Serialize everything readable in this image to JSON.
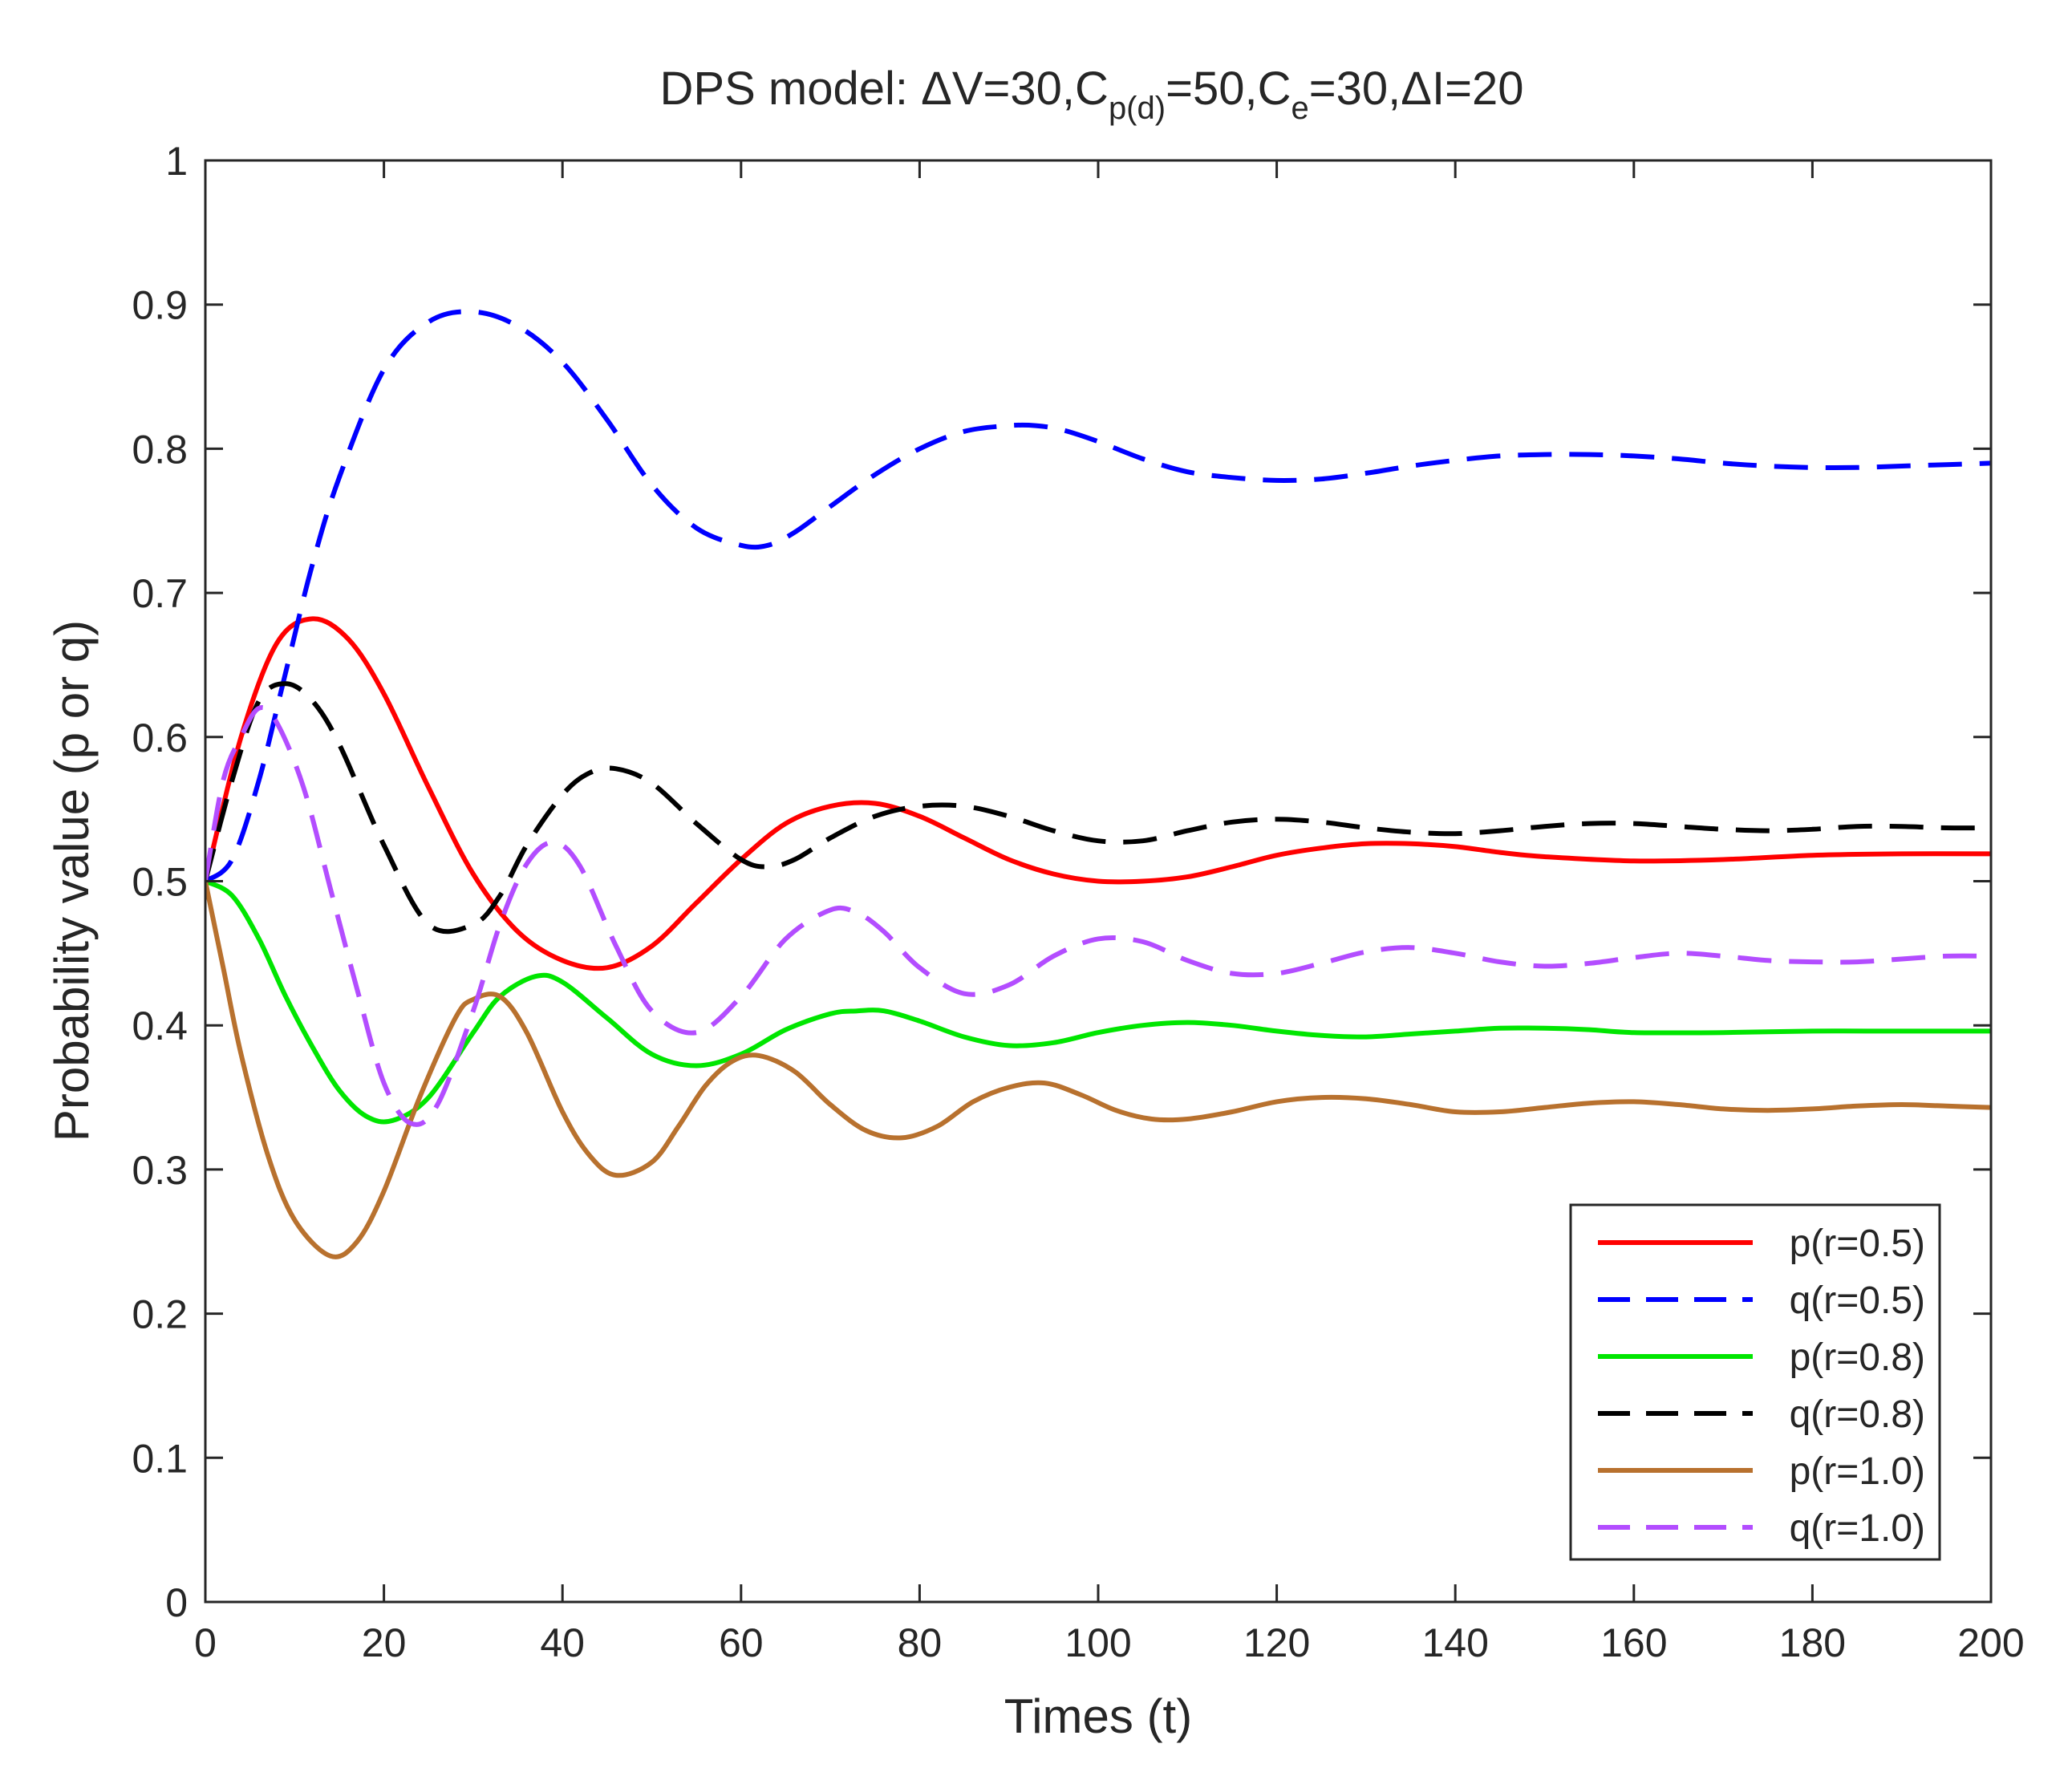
{
  "chart_data": {
    "type": "line",
    "title": {
      "prefix": "DPS model: ",
      "delta": "Δ",
      "v_label": "V=30,C",
      "sub1": "p(d)",
      "mid1": "=50,C",
      "sub2": "e",
      "mid2": "=30,",
      "i_label": "I=20"
    },
    "xlabel": "Times (t)",
    "ylabel": "Probability value (p or q)",
    "xlim": [
      0,
      200
    ],
    "ylim": [
      0,
      1
    ],
    "xticks": [
      "0",
      "20",
      "40",
      "60",
      "80",
      "100",
      "120",
      "140",
      "160",
      "180",
      "200"
    ],
    "yticks": [
      "0",
      "0.1",
      "0.2",
      "0.3",
      "0.4",
      "0.5",
      "0.6",
      "0.7",
      "0.8",
      "0.9",
      "1"
    ],
    "grid": false,
    "legend_position": "bottom-right",
    "series": [
      {
        "name": "p(r=0.5)",
        "color": "#ff0000",
        "dash": "solid",
        "x": [
          0,
          4,
          8,
          12,
          16,
          20,
          25,
          30,
          35,
          40,
          45,
          50,
          55,
          60,
          65,
          70,
          75,
          80,
          85,
          90,
          95,
          100,
          105,
          110,
          115,
          120,
          125,
          130,
          135,
          140,
          145,
          150,
          160,
          170,
          180,
          190,
          200
        ],
        "y": [
          0.5,
          0.6,
          0.665,
          0.682,
          0.668,
          0.63,
          0.565,
          0.505,
          0.465,
          0.445,
          0.44,
          0.455,
          0.485,
          0.515,
          0.54,
          0.552,
          0.554,
          0.545,
          0.53,
          0.515,
          0.505,
          0.5,
          0.5,
          0.503,
          0.51,
          0.518,
          0.523,
          0.526,
          0.526,
          0.524,
          0.52,
          0.517,
          0.514,
          0.515,
          0.518,
          0.519,
          0.519
        ]
      },
      {
        "name": "q(r=0.5)",
        "color": "#0000ff",
        "dash": "dashed",
        "x": [
          0,
          3,
          6,
          9,
          12,
          15,
          20,
          25,
          30,
          35,
          40,
          45,
          50,
          55,
          60,
          63,
          66,
          70,
          75,
          80,
          85,
          90,
          93,
          96,
          100,
          105,
          110,
          115,
          120,
          125,
          130,
          135,
          140,
          145,
          150,
          155,
          160,
          165,
          170,
          175,
          180,
          185,
          190,
          195,
          200
        ],
        "y": [
          0.5,
          0.515,
          0.57,
          0.645,
          0.72,
          0.78,
          0.855,
          0.888,
          0.895,
          0.885,
          0.86,
          0.82,
          0.775,
          0.745,
          0.733,
          0.733,
          0.742,
          0.76,
          0.782,
          0.8,
          0.812,
          0.816,
          0.816,
          0.813,
          0.805,
          0.793,
          0.784,
          0.78,
          0.778,
          0.779,
          0.783,
          0.788,
          0.792,
          0.795,
          0.796,
          0.796,
          0.795,
          0.793,
          0.79,
          0.788,
          0.787,
          0.787,
          0.788,
          0.789,
          0.79
        ]
      },
      {
        "name": "p(r=0.8)",
        "color": "#00e600",
        "dash": "solid",
        "x": [
          0,
          3,
          6,
          9,
          12,
          15,
          18,
          21,
          25,
          30,
          33,
          37,
          40,
          45,
          50,
          55,
          60,
          65,
          70,
          73,
          76,
          80,
          85,
          90,
          95,
          100,
          105,
          110,
          115,
          120,
          125,
          130,
          135,
          140,
          145,
          150,
          155,
          160,
          170,
          180,
          190,
          200
        ],
        "y": [
          0.5,
          0.49,
          0.46,
          0.42,
          0.385,
          0.355,
          0.337,
          0.334,
          0.35,
          0.395,
          0.42,
          0.434,
          0.43,
          0.405,
          0.38,
          0.372,
          0.38,
          0.397,
          0.408,
          0.41,
          0.41,
          0.403,
          0.392,
          0.386,
          0.388,
          0.395,
          0.4,
          0.402,
          0.4,
          0.396,
          0.393,
          0.392,
          0.394,
          0.396,
          0.398,
          0.398,
          0.397,
          0.395,
          0.395,
          0.396,
          0.396,
          0.396
        ]
      },
      {
        "name": "q(r=0.8)",
        "color": "#000000",
        "dash": "dashed",
        "x": [
          0,
          3,
          6,
          9,
          12,
          15,
          20,
          25,
          30,
          33,
          36,
          40,
          43,
          46,
          50,
          55,
          60,
          63,
          66,
          70,
          75,
          80,
          85,
          90,
          95,
          100,
          105,
          110,
          115,
          120,
          125,
          130,
          135,
          140,
          145,
          150,
          155,
          160,
          165,
          170,
          175,
          180,
          185,
          190,
          195,
          200
        ],
        "y": [
          0.5,
          0.57,
          0.625,
          0.637,
          0.625,
          0.595,
          0.525,
          0.47,
          0.47,
          0.49,
          0.525,
          0.56,
          0.575,
          0.578,
          0.568,
          0.54,
          0.515,
          0.51,
          0.515,
          0.53,
          0.545,
          0.552,
          0.552,
          0.545,
          0.535,
          0.528,
          0.528,
          0.535,
          0.541,
          0.543,
          0.541,
          0.537,
          0.534,
          0.533,
          0.535,
          0.538,
          0.54,
          0.54,
          0.538,
          0.536,
          0.535,
          0.536,
          0.538,
          0.538,
          0.537,
          0.537
        ]
      },
      {
        "name": "p(r=1.0)",
        "color": "#b8712e",
        "dash": "solid",
        "x": [
          0,
          2,
          4,
          7,
          10,
          14,
          17,
          20,
          24,
          28,
          30,
          33,
          36,
          40,
          43,
          46,
          50,
          53,
          56,
          59,
          62,
          66,
          70,
          74,
          78,
          82,
          86,
          90,
          94,
          98,
          102,
          106,
          110,
          115,
          120,
          125,
          130,
          135,
          140,
          145,
          150,
          155,
          160,
          165,
          170,
          175,
          180,
          185,
          190,
          195,
          200
        ],
        "y": [
          0.5,
          0.44,
          0.38,
          0.31,
          0.265,
          0.24,
          0.25,
          0.285,
          0.35,
          0.405,
          0.418,
          0.42,
          0.395,
          0.34,
          0.31,
          0.296,
          0.305,
          0.33,
          0.358,
          0.375,
          0.379,
          0.368,
          0.345,
          0.327,
          0.322,
          0.33,
          0.347,
          0.357,
          0.36,
          0.352,
          0.341,
          0.335,
          0.335,
          0.34,
          0.347,
          0.35,
          0.349,
          0.345,
          0.34,
          0.34,
          0.343,
          0.346,
          0.347,
          0.345,
          0.342,
          0.341,
          0.342,
          0.344,
          0.345,
          0.344,
          0.343
        ]
      },
      {
        "name": "q(r=1.0)",
        "color": "#b34dff",
        "dash": "dashed",
        "x": [
          0,
          2,
          4,
          6,
          8,
          11,
          14,
          17,
          20,
          23,
          26,
          30,
          33,
          36,
          39,
          42,
          46,
          50,
          55,
          60,
          65,
          70,
          73,
          76,
          80,
          85,
          90,
          95,
          100,
          105,
          110,
          115,
          120,
          125,
          130,
          135,
          140,
          145,
          150,
          155,
          160,
          165,
          170,
          175,
          180,
          185,
          190,
          195,
          200
        ],
        "y": [
          0.5,
          0.57,
          0.6,
          0.62,
          0.61,
          0.565,
          0.495,
          0.425,
          0.36,
          0.332,
          0.345,
          0.41,
          0.47,
          0.512,
          0.527,
          0.51,
          0.455,
          0.41,
          0.395,
          0.42,
          0.46,
          0.48,
          0.478,
          0.465,
          0.44,
          0.422,
          0.428,
          0.448,
          0.46,
          0.458,
          0.445,
          0.436,
          0.436,
          0.443,
          0.451,
          0.454,
          0.45,
          0.444,
          0.441,
          0.443,
          0.447,
          0.45,
          0.448,
          0.445,
          0.444,
          0.444,
          0.446,
          0.448,
          0.448
        ]
      }
    ]
  }
}
